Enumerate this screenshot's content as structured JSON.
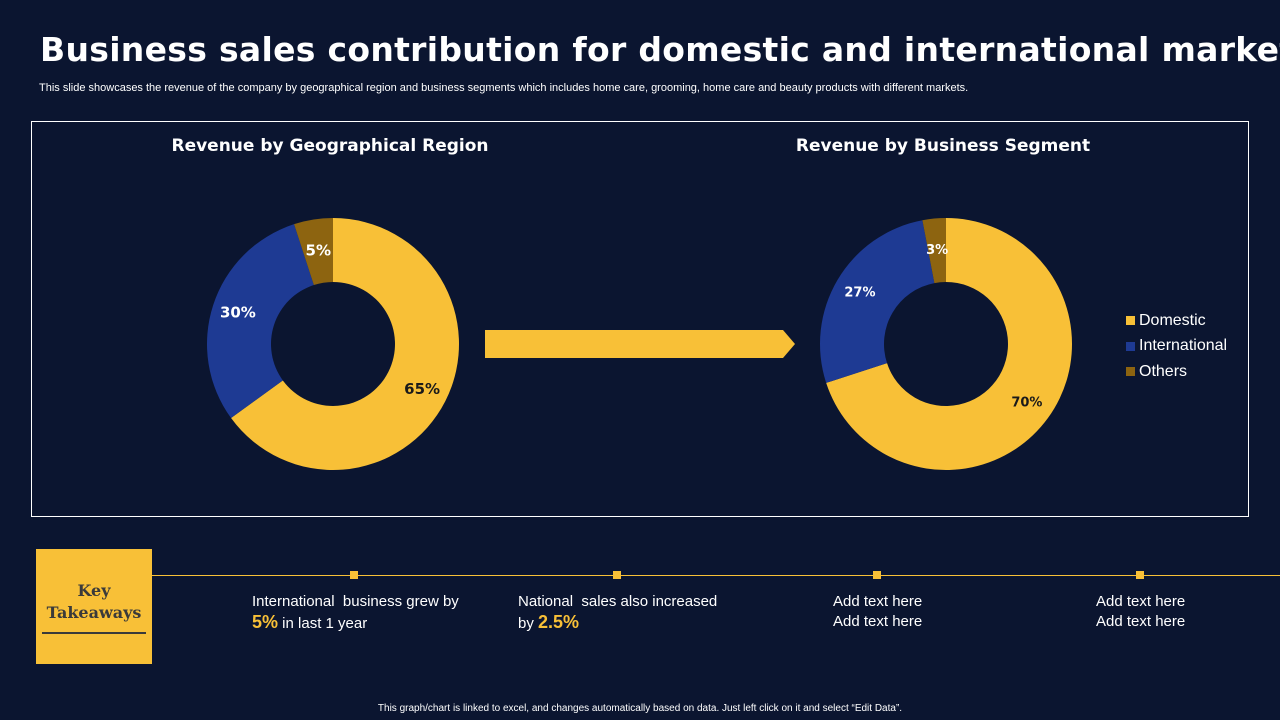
{
  "slide": {
    "title": "Business sales contribution for domestic and international market",
    "subtitle": "This slide showcases the revenue of the company by geographical region and business segments which includes home care, grooming, home care and beauty products with different markets.",
    "footer": "This graph/chart is linked to excel, and changes automatically based on data. Just left click on it and select “Edit Data”."
  },
  "colors": {
    "background": "#0b1530",
    "domestic": "#f8c037",
    "international": "#1e3a93",
    "others": "#8d6410",
    "accent": "#f8c037"
  },
  "legend": {
    "items": [
      {
        "label": "Domestic",
        "color": "#f8c037"
      },
      {
        "label": "International",
        "color": "#1e3a93"
      },
      {
        "label": "Others",
        "color": "#8d6410"
      }
    ]
  },
  "chart_data": [
    {
      "type": "pie",
      "donut": true,
      "title": "Revenue by Geographical Region",
      "categories": [
        "Domestic",
        "International",
        "Others"
      ],
      "values": [
        65,
        30,
        5
      ],
      "labels": [
        "65%",
        "30%",
        "5%"
      ]
    },
    {
      "type": "pie",
      "donut": true,
      "title": "Revenue by Business Segment",
      "categories": [
        "Domestic",
        "International",
        "Others"
      ],
      "values": [
        70,
        27,
        3
      ],
      "labels": [
        "70%",
        "27%",
        "3%"
      ]
    }
  ],
  "takeaways": {
    "heading_line1": "Key",
    "heading_line2": "Takeaways",
    "items": [
      {
        "pre": "International  business grew by",
        "highlight": "5%",
        "post": " in last 1 year"
      },
      {
        "pre": "National  sales also increased",
        "by": "by ",
        "highlight": "2.5%"
      },
      {
        "line1": "Add text here",
        "line2": "Add text here"
      },
      {
        "line1": "Add text here",
        "line2": "Add text here"
      }
    ]
  }
}
